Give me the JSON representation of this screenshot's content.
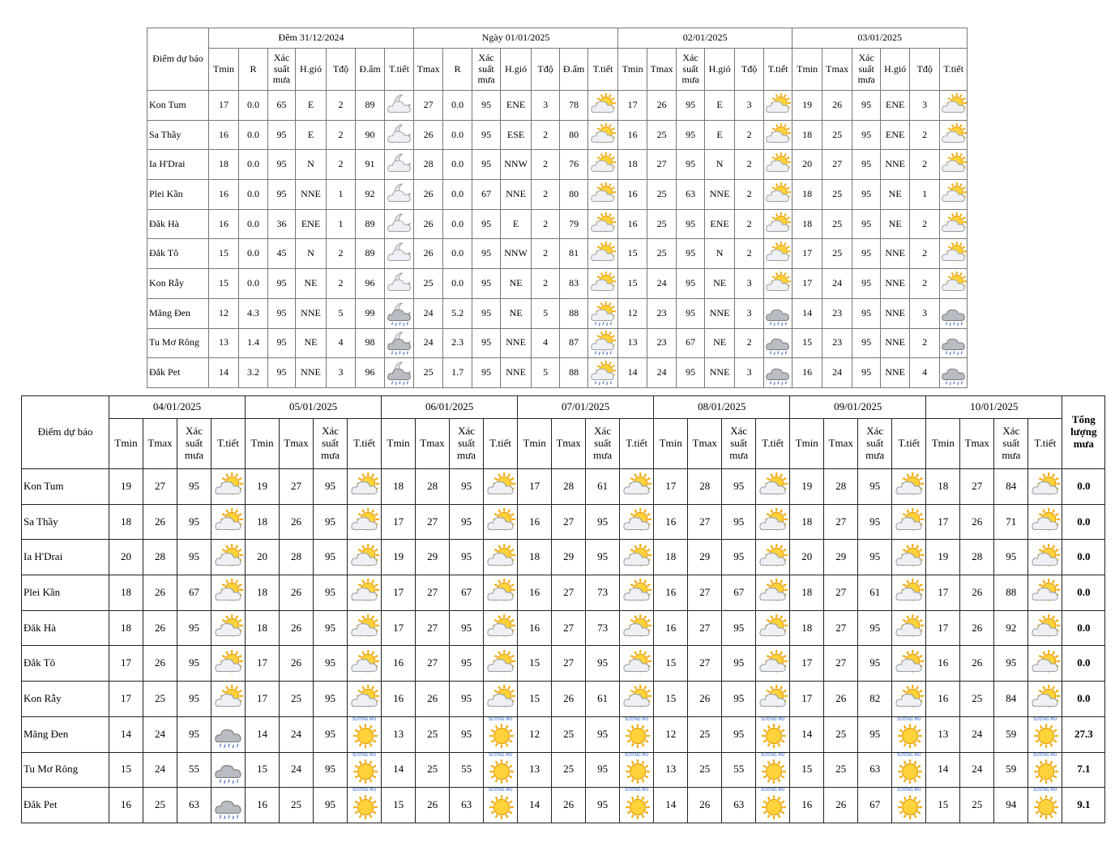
{
  "fog_label": "SƯƠNG MÙ",
  "table1": {
    "station_header": "Điểm dự báo",
    "groups": [
      {
        "title": "Đêm 31/12/2024",
        "columns": [
          "Tmin",
          "R",
          "Xác suất mưa",
          "H.gió",
          "Tđộ",
          "Đ.ẩm",
          "T.tiết"
        ]
      },
      {
        "title": "Ngày 01/01/2025",
        "columns": [
          "Tmax",
          "R",
          "Xác suất mưa",
          "H.gió",
          "Tđộ",
          "Đ.ẩm",
          "T.tiết"
        ]
      },
      {
        "title": "02/01/2025",
        "columns": [
          "Tmin",
          "Tmax",
          "Xác suất mưa",
          "H.gió",
          "Tđộ",
          "T.tiết"
        ]
      },
      {
        "title": "03/01/2025",
        "columns": [
          "Tmin",
          "Tmax",
          "Xác suất mưa",
          "H.gió",
          "Tđộ",
          "T.tiết"
        ]
      }
    ],
    "rows": [
      {
        "station": "Kon Tum",
        "cells": [
          "17",
          "0.0",
          "65",
          "E",
          "2",
          "89",
          "27",
          "0.0",
          "95",
          "ENE",
          "3",
          "78",
          "17",
          "26",
          "95",
          "E",
          "3",
          "19",
          "26",
          "95",
          "ENE",
          "3"
        ]
      },
      {
        "station": "Sa Thầy",
        "cells": [
          "16",
          "0.0",
          "95",
          "E",
          "2",
          "90",
          "26",
          "0.0",
          "95",
          "ESE",
          "2",
          "80",
          "16",
          "25",
          "95",
          "E",
          "2",
          "18",
          "25",
          "95",
          "ENE",
          "2"
        ]
      },
      {
        "station": "Ia H'Drai",
        "cells": [
          "18",
          "0.0",
          "95",
          "N",
          "2",
          "91",
          "28",
          "0.0",
          "95",
          "NNW",
          "2",
          "76",
          "18",
          "27",
          "95",
          "N",
          "2",
          "20",
          "27",
          "95",
          "NNE",
          "2"
        ]
      },
      {
        "station": "Plei Kần",
        "cells": [
          "16",
          "0.0",
          "95",
          "NNE",
          "1",
          "92",
          "26",
          "0.0",
          "67",
          "NNE",
          "2",
          "80",
          "16",
          "25",
          "63",
          "NNE",
          "2",
          "18",
          "25",
          "95",
          "NE",
          "1"
        ]
      },
      {
        "station": "Đăk Hà",
        "cells": [
          "16",
          "0.0",
          "36",
          "ENE",
          "1",
          "89",
          "26",
          "0.0",
          "95",
          "E",
          "2",
          "79",
          "16",
          "25",
          "95",
          "ENE",
          "2",
          "18",
          "25",
          "95",
          "NE",
          "2"
        ]
      },
      {
        "station": "Đắk Tô",
        "cells": [
          "15",
          "0.0",
          "45",
          "N",
          "2",
          "89",
          "26",
          "0.0",
          "95",
          "NNW",
          "2",
          "81",
          "15",
          "25",
          "95",
          "N",
          "2",
          "17",
          "25",
          "95",
          "NNE",
          "2"
        ]
      },
      {
        "station": "Kon Rẫy",
        "cells": [
          "15",
          "0.0",
          "95",
          "NE",
          "2",
          "96",
          "25",
          "0.0",
          "95",
          "NE",
          "2",
          "83",
          "15",
          "24",
          "95",
          "NE",
          "3",
          "17",
          "24",
          "95",
          "NNE",
          "2"
        ]
      },
      {
        "station": "Măng Đen",
        "cells": [
          "12",
          "4.3",
          "95",
          "NNE",
          "5",
          "99",
          "24",
          "5.2",
          "95",
          "NE",
          "5",
          "88",
          "12",
          "23",
          "95",
          "NNE",
          "3",
          "14",
          "23",
          "95",
          "NNE",
          "3"
        ]
      },
      {
        "station": "Tu Mơ Rông",
        "cells": [
          "13",
          "1.4",
          "95",
          "NE",
          "4",
          "98",
          "24",
          "2.3",
          "95",
          "NNE",
          "4",
          "87",
          "13",
          "23",
          "67",
          "NE",
          "2",
          "15",
          "23",
          "95",
          "NNE",
          "2"
        ]
      },
      {
        "station": "Đắk Pet",
        "cells": [
          "14",
          "3.2",
          "95",
          "NNE",
          "3",
          "96",
          "25",
          "1.7",
          "95",
          "NNE",
          "5",
          "88",
          "14",
          "24",
          "95",
          "NNE",
          "3",
          "16",
          "24",
          "95",
          "NNE",
          "4"
        ]
      }
    ]
  },
  "table2": {
    "station_header": "Điểm dự báo",
    "total_header": "Tổng lượng mưa",
    "groups": [
      {
        "title": "04/01/2025",
        "columns": [
          "Tmin",
          "Tmax",
          "Xác suất mưa",
          "T.tiết"
        ]
      },
      {
        "title": "05/01/2025",
        "columns": [
          "Tmin",
          "Tmax",
          "Xác suất mưa",
          "T.tiết"
        ]
      },
      {
        "title": "06/01/2025",
        "columns": [
          "Tmin",
          "Tmax",
          "Xác suất mưa",
          "T.tiết"
        ]
      },
      {
        "title": "07/01/2025",
        "columns": [
          "Tmin",
          "Tmax",
          "Xác suất mưa",
          "T.tiết"
        ]
      },
      {
        "title": "08/01/2025",
        "columns": [
          "Tmin",
          "Tmax",
          "Xác suất mưa",
          "T.tiết"
        ]
      },
      {
        "title": "09/01/2025",
        "columns": [
          "Tmin",
          "Tmax",
          "Xác suất mưa",
          "T.tiết"
        ]
      },
      {
        "title": "10/01/2025",
        "columns": [
          "Tmin",
          "Tmax",
          "Xác suất mưa",
          "T.tiết"
        ]
      }
    ],
    "rows": [
      {
        "station": "Kon Tum",
        "cells": [
          "19",
          "27",
          "95",
          "19",
          "27",
          "95",
          "18",
          "28",
          "95",
          "17",
          "28",
          "61",
          "17",
          "28",
          "95",
          "19",
          "28",
          "95",
          "18",
          "27",
          "84"
        ],
        "total": "0.0"
      },
      {
        "station": "Sa Thầy",
        "cells": [
          "18",
          "26",
          "95",
          "18",
          "26",
          "95",
          "17",
          "27",
          "95",
          "16",
          "27",
          "95",
          "16",
          "27",
          "95",
          "18",
          "27",
          "95",
          "17",
          "26",
          "71"
        ],
        "total": "0.0"
      },
      {
        "station": "Ia H'Drai",
        "cells": [
          "20",
          "28",
          "95",
          "20",
          "28",
          "95",
          "19",
          "29",
          "95",
          "18",
          "29",
          "95",
          "18",
          "29",
          "95",
          "20",
          "29",
          "95",
          "19",
          "28",
          "95"
        ],
        "total": "0.0"
      },
      {
        "station": "Plei Kần",
        "cells": [
          "18",
          "26",
          "67",
          "18",
          "26",
          "95",
          "17",
          "27",
          "67",
          "16",
          "27",
          "73",
          "16",
          "27",
          "67",
          "18",
          "27",
          "61",
          "17",
          "26",
          "88"
        ],
        "total": "0.0"
      },
      {
        "station": "Đăk Hà",
        "cells": [
          "18",
          "26",
          "95",
          "18",
          "26",
          "95",
          "17",
          "27",
          "95",
          "16",
          "27",
          "73",
          "16",
          "27",
          "95",
          "18",
          "27",
          "95",
          "17",
          "26",
          "92"
        ],
        "total": "0.0"
      },
      {
        "station": "Đắk Tô",
        "cells": [
          "17",
          "26",
          "95",
          "17",
          "26",
          "95",
          "16",
          "27",
          "95",
          "15",
          "27",
          "95",
          "15",
          "27",
          "95",
          "17",
          "27",
          "95",
          "16",
          "26",
          "95"
        ],
        "total": "0.0"
      },
      {
        "station": "Kon Rẫy",
        "cells": [
          "17",
          "25",
          "95",
          "17",
          "25",
          "95",
          "16",
          "26",
          "95",
          "15",
          "26",
          "61",
          "15",
          "26",
          "95",
          "17",
          "26",
          "82",
          "16",
          "25",
          "84"
        ],
        "total": "0.0"
      },
      {
        "station": "Măng Đen",
        "cells": [
          "14",
          "24",
          "95",
          "14",
          "24",
          "95",
          "13",
          "25",
          "95",
          "12",
          "25",
          "95",
          "12",
          "25",
          "95",
          "14",
          "25",
          "95",
          "13",
          "24",
          "59"
        ],
        "total": "27.3"
      },
      {
        "station": "Tu Mơ Rông",
        "cells": [
          "15",
          "24",
          "55",
          "15",
          "24",
          "95",
          "14",
          "25",
          "55",
          "13",
          "25",
          "95",
          "13",
          "25",
          "55",
          "15",
          "25",
          "63",
          "14",
          "24",
          "59"
        ],
        "total": "7.1"
      },
      {
        "station": "Đắk Pet",
        "cells": [
          "16",
          "25",
          "63",
          "16",
          "25",
          "95",
          "15",
          "26",
          "63",
          "14",
          "26",
          "95",
          "14",
          "26",
          "63",
          "16",
          "26",
          "67",
          "15",
          "25",
          "94"
        ],
        "total": "9.1"
      }
    ]
  }
}
